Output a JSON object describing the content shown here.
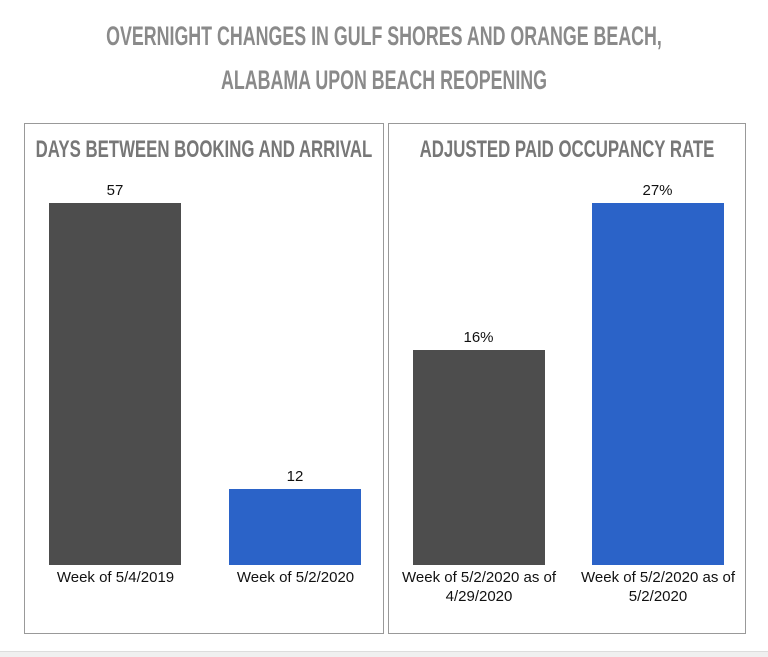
{
  "title": "OVERNIGHT CHANGES IN GULF SHORES AND ORANGE BEACH, ALABAMA UPON BEACH REOPENING",
  "chart_data": [
    {
      "type": "bar",
      "title": "DAYS BETWEEN BOOKING AND ARRIVAL",
      "categories": [
        "Week of 5/4/2019",
        "Week of 5/2/2020"
      ],
      "values": [
        57,
        12
      ],
      "colors": [
        "#4d4d4d",
        "#2b63c8"
      ]
    },
    {
      "type": "bar",
      "title": "ADJUSTED PAID OCCUPANCY RATE",
      "categories": [
        "Week of 5/2/2020 as of 4/29/2020",
        "Week of 5/2/2020 as of 5/2/2020"
      ],
      "values": [
        16,
        27
      ],
      "value_labels": [
        "16%",
        "27%"
      ],
      "colors": [
        "#4d4d4d",
        "#2b63c8"
      ]
    }
  ]
}
